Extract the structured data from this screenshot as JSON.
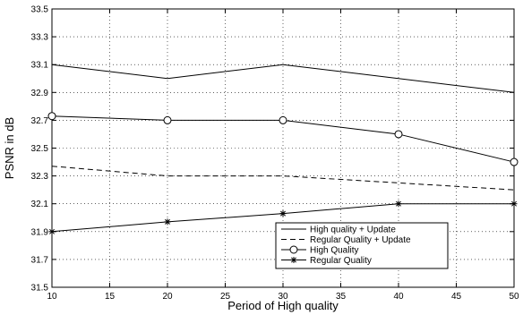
{
  "chart_data": {
    "type": "line",
    "xlabel": "Period of High quality",
    "ylabel": "PSNR in dB",
    "xlim": [
      10,
      50
    ],
    "ylim": [
      31.5,
      33.5
    ],
    "xticks": [
      "10",
      "15",
      "20",
      "25",
      "30",
      "35",
      "40",
      "45",
      "50"
    ],
    "yticks": [
      "31.5",
      "31.7",
      "31.9",
      "32.1",
      "32.3",
      "32.5",
      "32.7",
      "32.9",
      "33.1",
      "33.3",
      "33.5"
    ],
    "grid": true,
    "legend_position": "bottom-right",
    "series": [
      {
        "name": "High quality + Update",
        "style": "solid",
        "marker": "none",
        "x": [
          10,
          20,
          30,
          40,
          50
        ],
        "y": [
          33.1,
          33.0,
          33.1,
          33.0,
          32.9
        ]
      },
      {
        "name": "Regular Quality + Update",
        "style": "dashed",
        "marker": "none",
        "x": [
          10,
          20,
          30,
          40,
          50
        ],
        "y": [
          32.37,
          32.3,
          32.3,
          32.25,
          32.2
        ]
      },
      {
        "name": "High Quality",
        "style": "solid",
        "marker": "circle",
        "x": [
          10,
          20,
          30,
          40,
          50
        ],
        "y": [
          32.73,
          32.7,
          32.7,
          32.6,
          32.4
        ]
      },
      {
        "name": "Regular Quality",
        "style": "solid",
        "marker": "star",
        "x": [
          10,
          20,
          30,
          40,
          50
        ],
        "y": [
          31.9,
          31.97,
          32.03,
          32.1,
          32.1
        ]
      }
    ]
  }
}
